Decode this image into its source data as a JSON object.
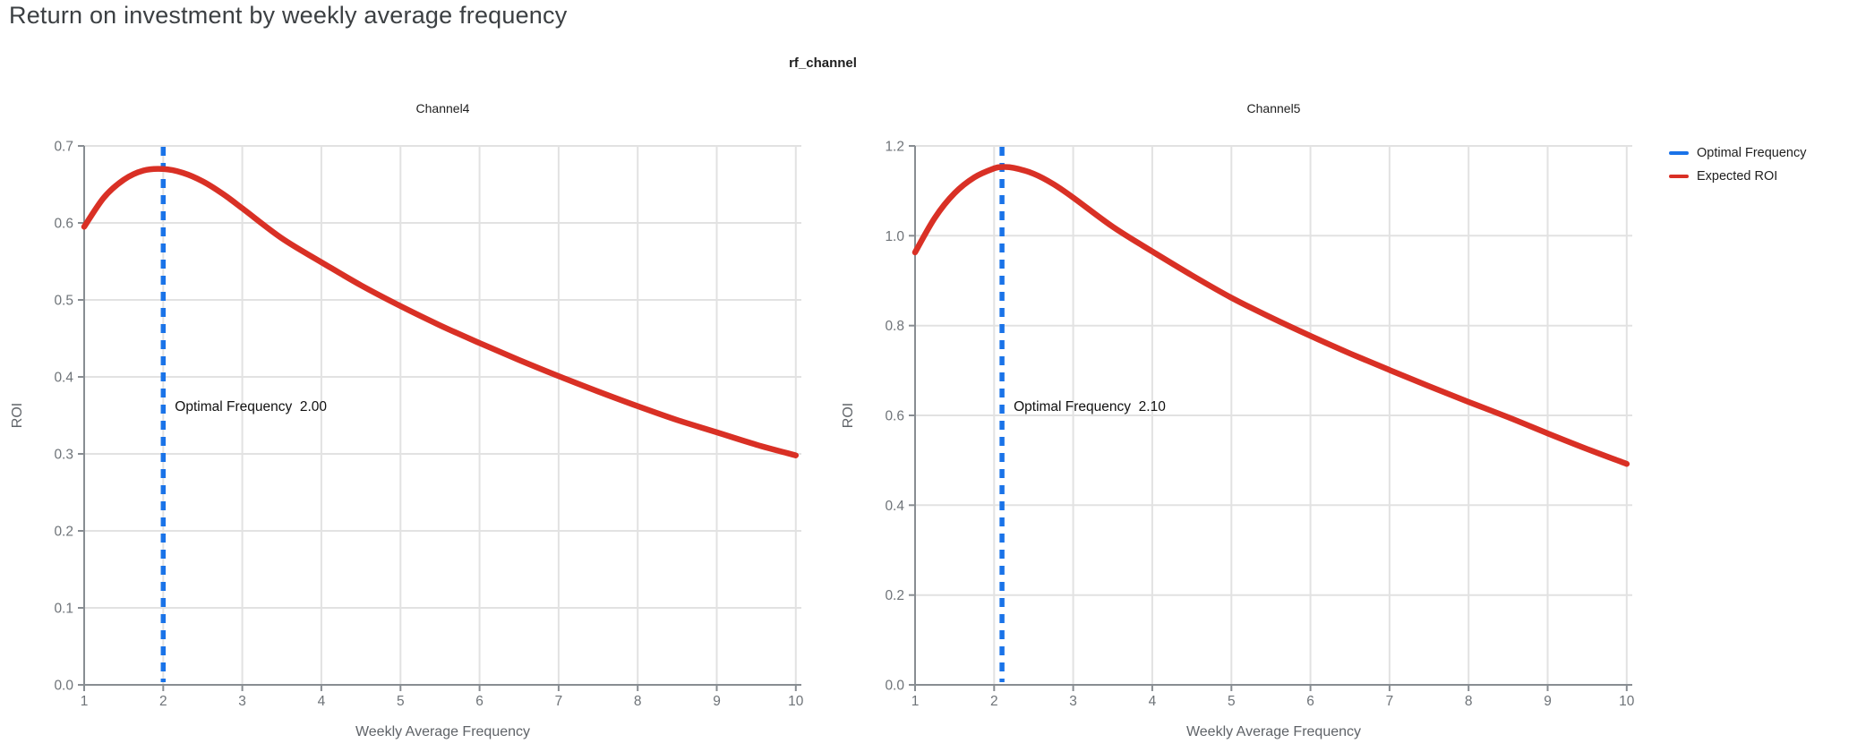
{
  "page": {
    "title": "Return on investment by weekly average frequency",
    "facet_title": "rf_channel"
  },
  "legend": {
    "items": [
      {
        "label": "Optimal Frequency",
        "color": "#1a73e8"
      },
      {
        "label": "Expected ROI",
        "color": "#d93025"
      }
    ]
  },
  "colors": {
    "expected_roi": "#d93025",
    "optimal_frequency": "#1a73e8",
    "grid": "#e2e2e2",
    "axis": "#888d92",
    "tick_label": "#6e7378",
    "axis_title": "#5f6368",
    "chart_title": "#1f1f1f",
    "annotation": "#111111",
    "page_title": "#3c4043"
  },
  "chart_data": [
    {
      "type": "line",
      "title": "Channel4",
      "xlabel": "Weekly Average Frequency",
      "ylabel": "ROI",
      "xlim": [
        1,
        10
      ],
      "ylim": [
        0,
        0.7
      ],
      "grid": true,
      "legend_position": "right",
      "xtick_labels": [
        "1",
        "2",
        "3",
        "4",
        "5",
        "6",
        "7",
        "8",
        "9",
        "10"
      ],
      "ytick_labels": [
        "0.0",
        "0.1",
        "0.2",
        "0.3",
        "0.4",
        "0.5",
        "0.6",
        "0.7"
      ],
      "optimal_frequency": 2.0,
      "annotation": {
        "label": "Optimal Frequency",
        "value": "2.00"
      },
      "series": [
        {
          "name": "Expected ROI",
          "x": [
            1,
            1.25,
            1.5,
            1.75,
            2,
            2.25,
            2.5,
            2.75,
            3,
            3.5,
            4,
            4.5,
            5,
            5.5,
            6,
            6.5,
            7,
            7.5,
            8,
            8.5,
            9,
            9.5,
            10
          ],
          "y": [
            0.595,
            0.633,
            0.656,
            0.668,
            0.67,
            0.665,
            0.654,
            0.638,
            0.619,
            0.58,
            0.549,
            0.519,
            0.492,
            0.467,
            0.444,
            0.422,
            0.401,
            0.381,
            0.362,
            0.344,
            0.328,
            0.312,
            0.298
          ]
        }
      ]
    },
    {
      "type": "line",
      "title": "Channel5",
      "xlabel": "Weekly Average Frequency",
      "ylabel": "ROI",
      "xlim": [
        1,
        10
      ],
      "ylim": [
        0,
        1.2
      ],
      "grid": true,
      "legend_position": "right",
      "xtick_labels": [
        "1",
        "2",
        "3",
        "4",
        "5",
        "6",
        "7",
        "8",
        "9",
        "10"
      ],
      "ytick_labels": [
        "0.0",
        "0.2",
        "0.4",
        "0.6",
        "0.8",
        "1.0",
        "1.2"
      ],
      "optimal_frequency": 2.1,
      "annotation": {
        "label": "Optimal Frequency",
        "value": "2.10"
      },
      "series": [
        {
          "name": "Expected ROI",
          "x": [
            1,
            1.25,
            1.5,
            1.75,
            2,
            2.1,
            2.25,
            2.5,
            2.75,
            3,
            3.5,
            4,
            4.5,
            5,
            5.5,
            6,
            6.5,
            7,
            7.5,
            8,
            8.5,
            9,
            9.5,
            10
          ],
          "y": [
            0.963,
            1.04,
            1.095,
            1.13,
            1.15,
            1.153,
            1.151,
            1.138,
            1.115,
            1.085,
            1.02,
            0.965,
            0.912,
            0.862,
            0.818,
            0.777,
            0.738,
            0.701,
            0.665,
            0.63,
            0.596,
            0.56,
            0.525,
            0.492
          ]
        }
      ]
    }
  ]
}
